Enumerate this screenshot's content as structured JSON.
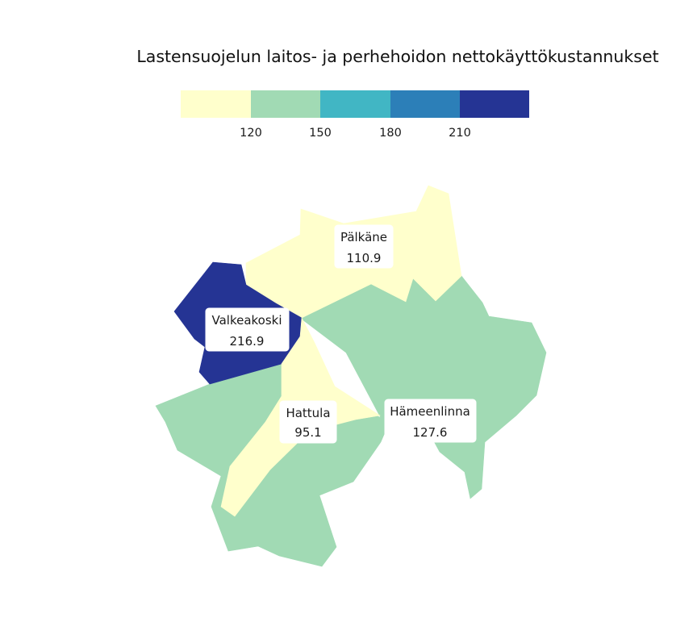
{
  "title": "Lastensuojelun laitos- ja perhehoidon nettokäyttökustannukset",
  "legend": {
    "colors": [
      "#ffffcc",
      "#a1dab4",
      "#41b6c4",
      "#2c7fb8",
      "#253494"
    ],
    "breaks": [
      "120",
      "150",
      "180",
      "210"
    ]
  },
  "regions": [
    {
      "id": "palkane",
      "name": "Pälkäne",
      "value": "110.9",
      "color": "#ffffcc"
    },
    {
      "id": "valkeakoski",
      "name": "Valkeakoski",
      "value": "216.9",
      "color": "#253494"
    },
    {
      "id": "hameenlinna",
      "name": "Hämeenlinna",
      "value": "127.6",
      "color": "#a1dab4"
    },
    {
      "id": "hattula",
      "name": "Hattula",
      "value": "95.1",
      "color": "#ffffcc"
    }
  ]
}
